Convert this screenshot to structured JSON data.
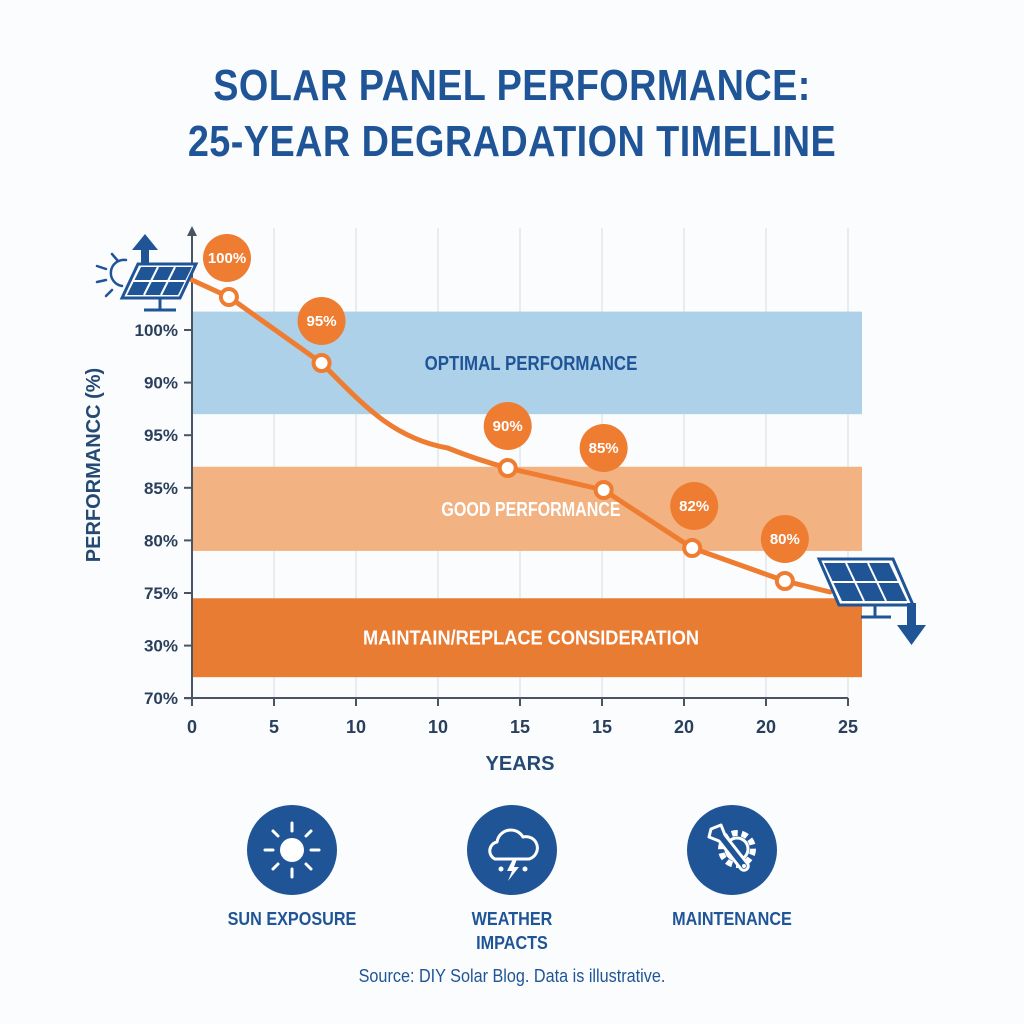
{
  "title": {
    "line1": "SOLAR PANEL PERFORMANCE:",
    "line2": "25-YEAR DEGRADATION TIMELINE"
  },
  "colors": {
    "brand_blue": "#1f5597",
    "axis_text": "#2a3f5c",
    "line_orange": "#ee7d32",
    "band_optimal": "#aed1ea",
    "band_good": "#f2b282",
    "band_replace": "#e97c33"
  },
  "chart_data": {
    "type": "line",
    "title": "Solar Panel Performance: 25-Year Degradation Timeline",
    "xlabel": "YEARS",
    "ylabel": "PERFORMANCC (%)",
    "x_tick_labels": [
      "0",
      "5",
      "10",
      "10",
      "15",
      "15",
      "20",
      "20",
      "25"
    ],
    "y_tick_labels": [
      "100%",
      "90%",
      "95%",
      "85%",
      "80%",
      "75%",
      "30%",
      "70%"
    ],
    "grid": true,
    "series": [
      {
        "name": "Performance",
        "points": [
          {
            "x_index": 0.45,
            "value": 100,
            "label": "100%"
          },
          {
            "x_index": 1.58,
            "value": 95,
            "label": "95%"
          },
          {
            "x_index": 3.85,
            "value": 90,
            "label": "90%"
          },
          {
            "x_index": 5.02,
            "value": 85,
            "label": "85%"
          },
          {
            "x_index": 6.1,
            "value": 82,
            "label": "82%"
          },
          {
            "x_index": 7.23,
            "value": 80,
            "label": "80%"
          }
        ]
      }
    ],
    "bands": [
      {
        "label": "OPTIMAL PERFORMANCE",
        "color": "#aed1ea",
        "text_color": "#1f5597",
        "y_from_index": -0.35,
        "y_to_index": 1.6
      },
      {
        "label": "GOOD PERFORMANCE",
        "color": "#f2b282",
        "text_color": "#ffffff",
        "y_from_index": 2.6,
        "y_to_index": 4.2
      },
      {
        "label": "MAINTAIN/REPLACE CONSIDERATION",
        "color": "#e97c33",
        "text_color": "#ffffff",
        "y_from_index": 5.1,
        "y_to_index": 6.6
      }
    ],
    "annotations": [
      "solar panel with up arrow at start",
      "solar panel with down arrow at end"
    ]
  },
  "factors": [
    {
      "label_line1": "SUN EXPOSURE",
      "label_line2": "",
      "icon": "sun-icon"
    },
    {
      "label_line1": "WEATHER",
      "label_line2": "IMPACTS",
      "icon": "storm-cloud-icon"
    },
    {
      "label_line1": "MAINTENANCE",
      "label_line2": "",
      "icon": "wrench-gear-icon"
    }
  ],
  "source": "Source: DIY Solar Blog. Data is illustrative."
}
